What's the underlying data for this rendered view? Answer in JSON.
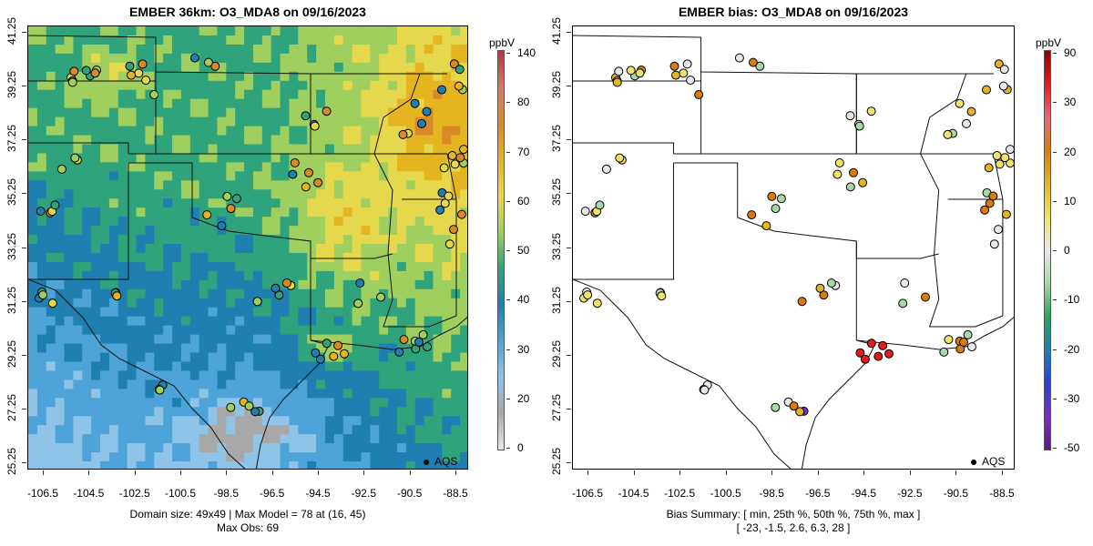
{
  "left_panel": {
    "title": "EMBER 36km: O3_MDA8 on 09/16/2023",
    "caption_line1": "Domain size: 49x49 | Max Model = 78 at (16, 45)",
    "caption_line2": "Max Obs: 69",
    "legend_label": "AQS",
    "colorbar": {
      "unit": "ppbV",
      "labels": [
        "140",
        "80",
        "70",
        "60",
        "50",
        "40",
        "30",
        "20",
        "0"
      ],
      "colors": [
        "#b3343f",
        "#d47a6a",
        "#d88a28",
        "#e5b421",
        "#e6d84c",
        "#9fcf5f",
        "#2fa37b",
        "#1f7fb1",
        "#4ea3d8",
        "#8fc4e8",
        "#a8a8a8",
        "#e8e8e8"
      ]
    }
  },
  "right_panel": {
    "title": "EMBER bias: O3_MDA8 on 09/16/2023",
    "caption_line1": "Bias Summary: [ min, 25th %, 50th %, 75th %, max ]",
    "caption_line2": "[ -23,  -1.5,  2.6,  6.3,  28 ]",
    "legend_label": "AQS",
    "colorbar": {
      "unit": "ppbV",
      "labels": [
        "90",
        "30",
        "20",
        "10",
        "0",
        "-10",
        "-20",
        "-30",
        "-50"
      ],
      "colors": [
        "#8b0000",
        "#e41a1c",
        "#e86a7a",
        "#d97b0f",
        "#e5b421",
        "#f0e36b",
        "#e8e8e8",
        "#a8d8a8",
        "#2ca25f",
        "#1f7fb1",
        "#2b3fd6",
        "#7b2fbf",
        "#5a1a8a"
      ]
    }
  },
  "axes": {
    "y_ticks": [
      "41.25",
      "39.25",
      "37.25",
      "35.25",
      "33.25",
      "31.25",
      "29.25",
      "27.25",
      "25.25"
    ],
    "x_ticks": [
      "-106.5",
      "-104.5",
      "-102.5",
      "-100.5",
      "-98.5",
      "-96.5",
      "-94.5",
      "-92.5",
      "-90.5",
      "-88.5"
    ]
  },
  "colors": {
    "low": "#a8a8a8",
    "mid_low": "#4ea3d8",
    "mid": "#2fa37b",
    "mid_high": "#e6d84c",
    "high": "#d88a28"
  }
}
